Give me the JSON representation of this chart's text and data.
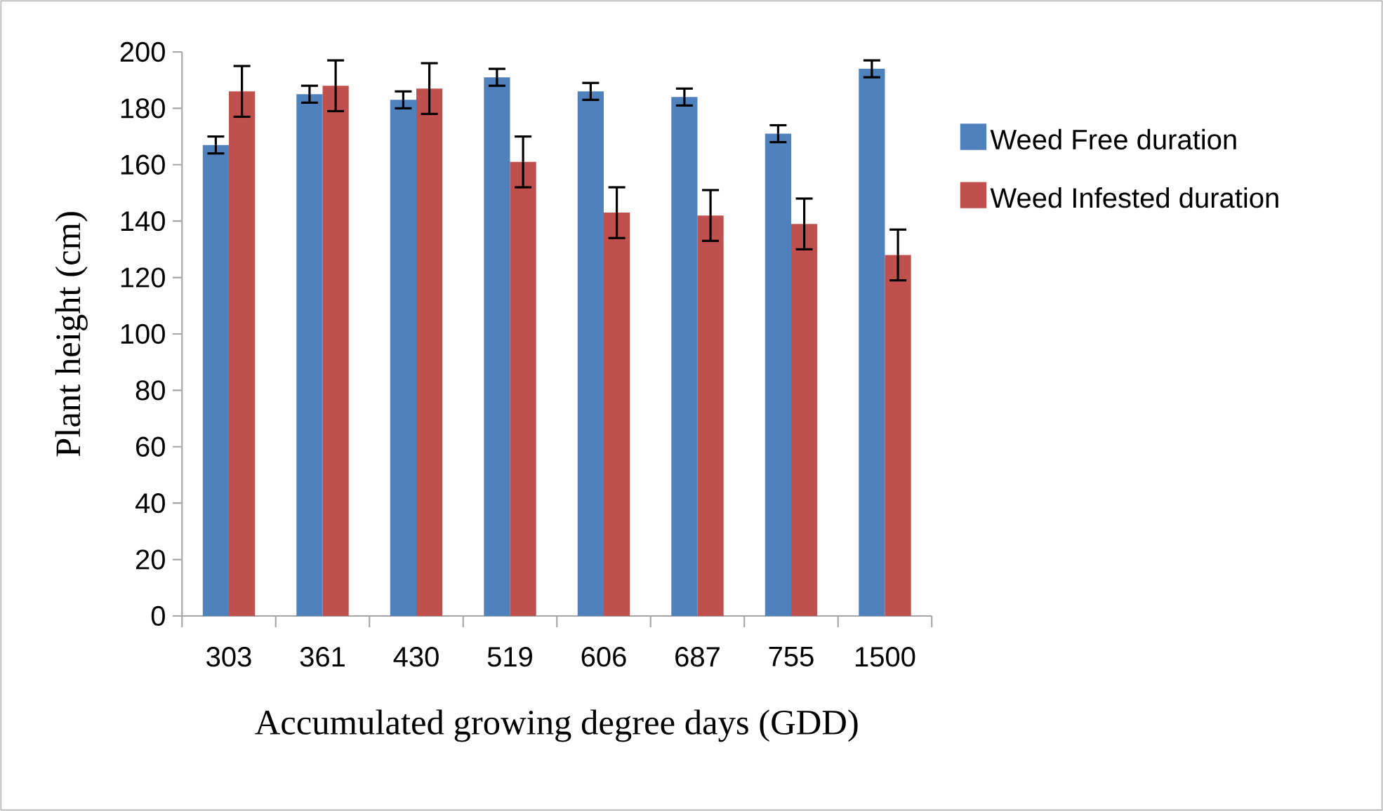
{
  "chart_data": {
    "type": "bar",
    "xlabel": "Accumulated growing degree days (GDD)",
    "ylabel": "Plant height (cm)",
    "categories": [
      "303",
      "361",
      "430",
      "519",
      "606",
      "687",
      "755",
      "1500"
    ],
    "series": [
      {
        "name": "Weed Free duration",
        "color": "#4f81bd",
        "values": [
          167,
          185,
          183,
          191,
          186,
          184,
          171,
          194
        ],
        "errors": [
          3,
          3,
          3,
          3,
          3,
          3,
          3,
          3
        ]
      },
      {
        "name": "Weed Infested duration",
        "color": "#c0504d",
        "values": [
          186,
          188,
          187,
          161,
          143,
          142,
          139,
          128
        ],
        "errors": [
          9,
          9,
          9,
          9,
          9,
          9,
          9,
          9
        ]
      }
    ],
    "ylim": [
      0,
      200
    ],
    "yticks": [
      0,
      20,
      40,
      60,
      80,
      100,
      120,
      140,
      160,
      180,
      200
    ],
    "legend": "right"
  }
}
